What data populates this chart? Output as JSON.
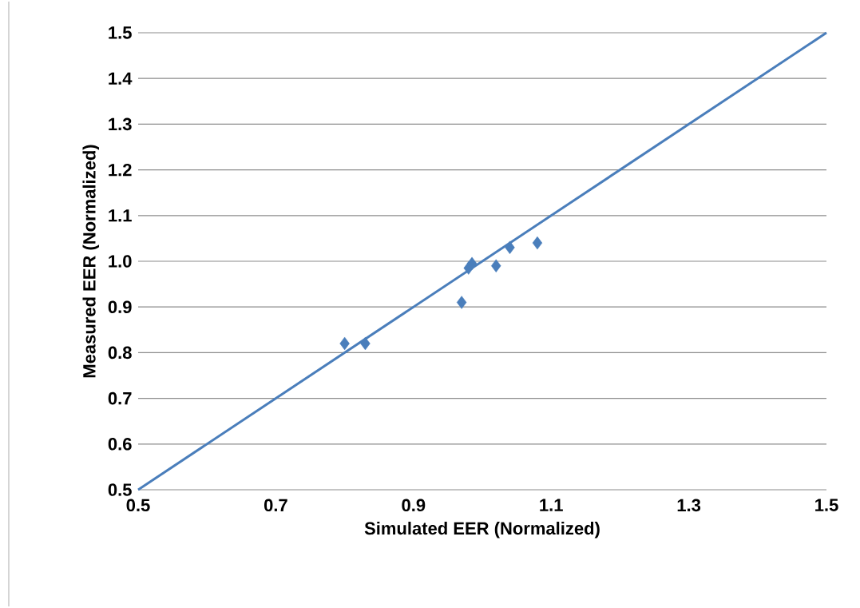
{
  "chart_data": {
    "type": "scatter",
    "xlabel": "Simulated EER (Normalized)",
    "ylabel": "Measured EER (Normalized)",
    "xlim": [
      0.5,
      1.5
    ],
    "ylim": [
      0.5,
      1.5
    ],
    "xticks": [
      {
        "value": 0.5,
        "label": "0.5"
      },
      {
        "value": 0.7,
        "label": "0.7"
      },
      {
        "value": 0.9,
        "label": "0.9"
      },
      {
        "value": 1.1,
        "label": "1.1"
      },
      {
        "value": 1.3,
        "label": "1.3"
      },
      {
        "value": 1.5,
        "label": "1.5"
      }
    ],
    "yticks": [
      {
        "value": 0.5,
        "label": "0.5"
      },
      {
        "value": 0.6,
        "label": "0.6"
      },
      {
        "value": 0.7,
        "label": "0.7"
      },
      {
        "value": 0.8,
        "label": "0.8"
      },
      {
        "value": 0.9,
        "label": "0.9"
      },
      {
        "value": 1.0,
        "label": "1.0"
      },
      {
        "value": 1.1,
        "label": "1.1"
      },
      {
        "value": 1.2,
        "label": "1.2"
      },
      {
        "value": 1.3,
        "label": "1.3"
      },
      {
        "value": 1.4,
        "label": "1.4"
      },
      {
        "value": 1.5,
        "label": "1.5"
      }
    ],
    "grid": "y",
    "marker": "diamond",
    "series": [
      {
        "color": "#4a7ebb",
        "x": [
          0.8,
          0.83,
          0.97,
          0.98,
          0.985,
          1.02,
          1.04,
          1.08
        ],
        "values": [
          0.82,
          0.82,
          0.91,
          0.985,
          0.995,
          0.99,
          1.03,
          1.04
        ]
      },
      {
        "type": "line",
        "color": "#4a7ebb",
        "marker": "none",
        "x": [
          0.5,
          1.5
        ],
        "values": [
          0.5,
          1.5
        ]
      }
    ]
  }
}
